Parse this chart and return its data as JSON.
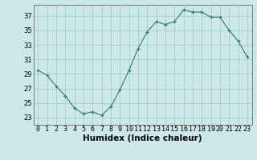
{
  "x": [
    0,
    1,
    2,
    3,
    4,
    5,
    6,
    7,
    8,
    9,
    10,
    11,
    12,
    13,
    14,
    15,
    16,
    17,
    18,
    19,
    20,
    21,
    22,
    23
  ],
  "y": [
    29.5,
    28.8,
    27.3,
    26.0,
    24.3,
    23.5,
    23.8,
    23.3,
    24.5,
    26.8,
    29.5,
    32.5,
    34.8,
    36.2,
    35.8,
    36.2,
    37.8,
    37.5,
    37.5,
    36.8,
    36.8,
    35.0,
    33.5,
    31.3
  ],
  "line_color": "#2e7d6e",
  "marker_color": "#2e7d6e",
  "bg_color": "#cce8e8",
  "grid_color": "#aacccc",
  "ylabel_ticks": [
    23,
    25,
    27,
    29,
    31,
    33,
    35,
    37
  ],
  "xlabel": "Humidex (Indice chaleur)",
  "ylim": [
    22.0,
    38.5
  ],
  "xlim": [
    -0.5,
    23.5
  ],
  "tick_fontsize": 6.0,
  "xlabel_fontsize": 7.5,
  "xtick_labels": [
    "0",
    "1",
    "2",
    "3",
    "4",
    "5",
    "6",
    "7",
    "8",
    "9",
    "10",
    "11",
    "12",
    "13",
    "14",
    "15",
    "16",
    "17",
    "18",
    "19",
    "20",
    "21",
    "22",
    "23"
  ]
}
